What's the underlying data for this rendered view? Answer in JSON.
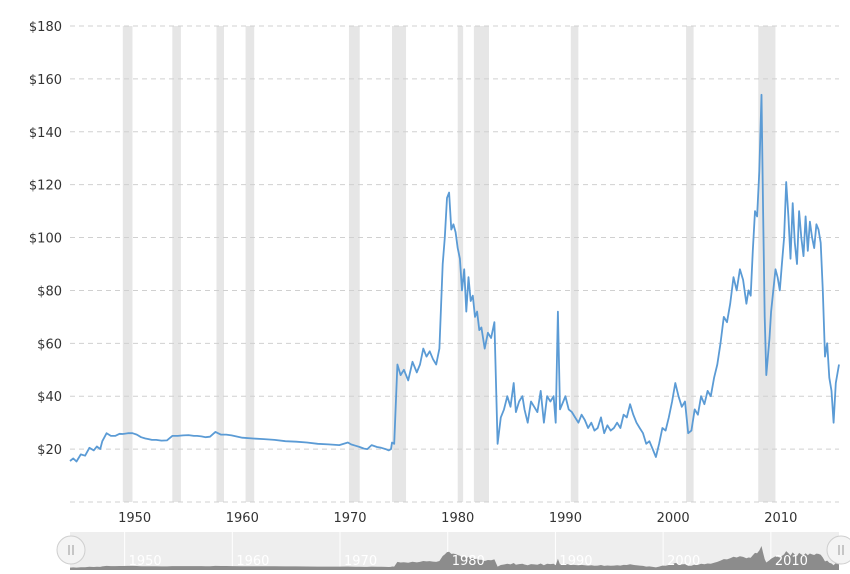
{
  "chart_data": {
    "type": "line",
    "title": "",
    "xlabel": "",
    "ylabel": "",
    "xlim": [
      1944,
      2015.4
    ],
    "ylim": [
      0,
      180
    ],
    "y_ticks": [
      20,
      40,
      60,
      80,
      100,
      120,
      140,
      160,
      180
    ],
    "y_tick_labels": [
      "$20",
      "$40",
      "$60",
      "$80",
      "$100",
      "$120",
      "$140",
      "$160",
      "$180"
    ],
    "x_ticks": [
      1950,
      1960,
      1970,
      1980,
      1990,
      2000,
      2010
    ],
    "x_tick_labels": [
      "1950",
      "1960",
      "1970",
      "1980",
      "1990",
      "2000",
      "2010"
    ],
    "grid": "horizontal dashed",
    "line_color": "#5b9bd5",
    "recession_color": "#e6e6e6",
    "recession_bands": [
      [
        1948.9,
        1949.8
      ],
      [
        1953.5,
        1954.3
      ],
      [
        1957.6,
        1958.3
      ],
      [
        1960.3,
        1961.1
      ],
      [
        1969.9,
        1970.9
      ],
      [
        1973.9,
        1975.2
      ],
      [
        1980.0,
        1980.5
      ],
      [
        1981.5,
        1982.9
      ],
      [
        1990.5,
        1991.2
      ],
      [
        2001.2,
        2001.9
      ],
      [
        2007.9,
        2009.5
      ]
    ],
    "series": [
      {
        "x": [
          1944.0,
          1944.3,
          1944.6,
          1945.0,
          1945.4,
          1945.8,
          1946.2,
          1946.5,
          1946.8,
          1947.0,
          1947.4,
          1947.8,
          1948.2,
          1948.6,
          1948.9,
          1949.4,
          1949.8,
          1950.2,
          1950.6,
          1951.0,
          1951.3,
          1951.6,
          1952.0,
          1952.5,
          1953.0,
          1953.5,
          1954.0,
          1954.5,
          1955.0,
          1955.5,
          1955.8,
          1956.2,
          1956.6,
          1957.0,
          1957.5,
          1958.0,
          1958.5,
          1959.0,
          1960.0,
          1961.0,
          1962.0,
          1963.0,
          1964.0,
          1965.0,
          1966.0,
          1967.0,
          1968.0,
          1969.0,
          1969.8,
          1970.1,
          1970.5,
          1970.9,
          1971.3,
          1971.6,
          1972.0,
          1972.5,
          1972.9,
          1973.3,
          1973.6,
          1973.8,
          1973.9,
          1974.1,
          1974.4,
          1974.7,
          1975.0,
          1975.4,
          1975.8,
          1976.2,
          1976.5,
          1976.8,
          1977.1,
          1977.4,
          1977.7,
          1978.0,
          1978.3,
          1978.6,
          1978.8,
          1979.0,
          1979.2,
          1979.4,
          1979.6,
          1979.8,
          1980.0,
          1980.2,
          1980.4,
          1980.6,
          1980.8,
          1981.0,
          1981.2,
          1981.4,
          1981.6,
          1981.8,
          1982.0,
          1982.2,
          1982.5,
          1982.8,
          1983.1,
          1983.4,
          1983.7,
          1984.0,
          1984.3,
          1984.6,
          1984.9,
          1985.2,
          1985.4,
          1985.7,
          1986.0,
          1986.2,
          1986.5,
          1986.8,
          1987.1,
          1987.4,
          1987.7,
          1988.0,
          1988.3,
          1988.6,
          1988.9,
          1989.1,
          1989.3,
          1989.5,
          1989.8,
          1990.0,
          1990.3,
          1990.6,
          1990.9,
          1991.2,
          1991.5,
          1991.8,
          1992.1,
          1992.4,
          1992.7,
          1993.0,
          1993.3,
          1993.6,
          1993.9,
          1994.2,
          1994.5,
          1994.8,
          1995.1,
          1995.4,
          1995.7,
          1996.0,
          1996.3,
          1996.6,
          1996.9,
          1997.2,
          1997.5,
          1997.8,
          1998.1,
          1998.4,
          1998.7,
          1999.0,
          1999.3,
          1999.6,
          1999.9,
          2000.2,
          2000.5,
          2000.8,
          2001.1,
          2001.4,
          2001.7,
          2002.0,
          2002.3,
          2002.6,
          2002.9,
          2003.2,
          2003.5,
          2003.8,
          2004.1,
          2004.4,
          2004.7,
          2005.0,
          2005.3,
          2005.6,
          2005.9,
          2006.2,
          2006.5,
          2006.8,
          2007.0,
          2007.2,
          2007.4,
          2007.6,
          2007.8,
          2008.0,
          2008.2,
          2008.35,
          2008.5,
          2008.65,
          2008.8,
          2008.95,
          2009.1,
          2009.3,
          2009.5,
          2009.7,
          2009.9,
          2010.1,
          2010.3,
          2010.5,
          2010.7,
          2010.9,
          2011.1,
          2011.3,
          2011.5,
          2011.7,
          2011.9,
          2012.1,
          2012.3,
          2012.5,
          2012.7,
          2012.9,
          2013.1,
          2013.3,
          2013.5,
          2013.7,
          2013.9,
          2014.1,
          2014.3,
          2014.5,
          2014.7,
          2014.9,
          2015.1,
          2015.4
        ],
        "values": [
          15.5,
          16.5,
          15.3,
          18.0,
          17.5,
          20.5,
          19.5,
          21.0,
          20.0,
          23.0,
          26.0,
          25.0,
          25.0,
          25.8,
          25.7,
          26.0,
          26.0,
          25.5,
          24.5,
          24.0,
          23.8,
          23.5,
          23.5,
          23.2,
          23.3,
          25.0,
          25.0,
          25.2,
          25.3,
          25.0,
          25.0,
          24.8,
          24.5,
          24.7,
          26.5,
          25.5,
          25.5,
          25.2,
          24.3,
          24.0,
          23.8,
          23.5,
          23.0,
          22.8,
          22.5,
          22.0,
          21.8,
          21.5,
          22.5,
          21.8,
          21.3,
          20.8,
          20.2,
          20.0,
          21.5,
          20.8,
          20.5,
          20.0,
          19.5,
          20.0,
          22.5,
          22.0,
          52.0,
          48.0,
          50.0,
          46.0,
          53.0,
          49.0,
          52.0,
          58.0,
          55.0,
          57.0,
          54.0,
          52.0,
          58.0,
          90.0,
          100.0,
          115.0,
          117.0,
          103.0,
          105.0,
          102.0,
          96.0,
          92.0,
          80.0,
          88.0,
          72.0,
          85.0,
          76.0,
          78.0,
          70.0,
          72.0,
          65.0,
          66.0,
          58.0,
          64.0,
          62.0,
          68.0,
          22.0,
          32.0,
          35.0,
          40.0,
          36.0,
          45.0,
          34.0,
          38.0,
          40.0,
          35.0,
          30.0,
          38.0,
          36.0,
          34.0,
          42.0,
          30.0,
          40.0,
          38.0,
          40.0,
          30.0,
          72.0,
          35.0,
          38.0,
          40.0,
          35.0,
          34.0,
          32.0,
          30.0,
          33.0,
          31.0,
          28.0,
          30.0,
          27.0,
          28.0,
          32.0,
          26.0,
          29.0,
          27.0,
          28.0,
          30.0,
          28.0,
          33.0,
          32.0,
          37.0,
          33.0,
          30.0,
          28.0,
          26.0,
          22.0,
          23.0,
          20.0,
          17.0,
          22.0,
          28.0,
          27.0,
          32.0,
          38.0,
          45.0,
          40.0,
          36.0,
          38.0,
          26.0,
          27.0,
          35.0,
          33.0,
          40.0,
          37.0,
          42.0,
          40.0,
          47.0,
          52.0,
          60.0,
          70.0,
          68.0,
          75.0,
          85.0,
          80.0,
          88.0,
          84.0,
          75.0,
          80.0,
          78.0,
          95.0,
          110.0,
          108.0,
          125.0,
          154.0,
          110.0,
          70.0,
          48.0,
          55.0,
          62.0,
          72.0,
          80.0,
          88.0,
          85.0,
          80.0,
          90.0,
          100.0,
          121.0,
          108.0,
          92.0,
          113.0,
          98.0,
          90.0,
          110.0,
          100.0,
          93.0,
          108.0,
          95.0,
          106.0,
          100.0,
          96.0,
          105.0,
          103.0,
          98.0,
          80.0,
          55.0,
          60.0,
          47.0,
          42.0,
          30.0,
          45.0,
          52.0
        ]
      }
    ],
    "navigator": {
      "x_tick_labels": [
        "1950",
        "1960",
        "1970",
        "1980",
        "1990",
        "2000",
        "2010"
      ],
      "background_color": "#eeeeee",
      "fill_color": "#8c8c8c"
    }
  }
}
